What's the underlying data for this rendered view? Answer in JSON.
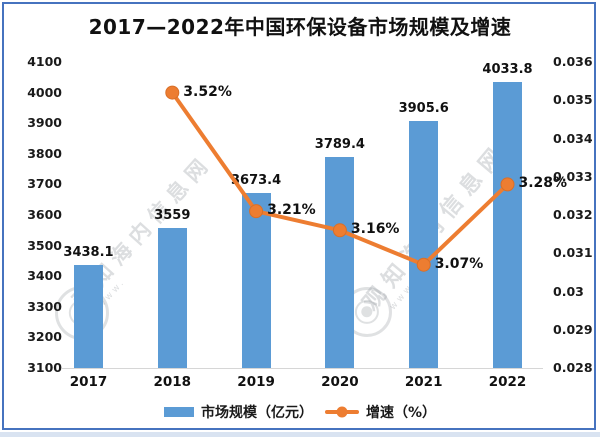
{
  "title": "2017—2022年中国环保设备市场规模及增速",
  "legend": {
    "bar_label": "市场规模（亿元）",
    "line_label": "增速（%）"
  },
  "watermark": {
    "text": "观知海内信息网",
    "subtext": "www."
  },
  "colors": {
    "bar": "#5B9BD5",
    "line": "#ED7D31",
    "border": "#4673bf",
    "text": "#111111",
    "baseline": "#d6d6d6"
  },
  "chart_data": {
    "type": "bar",
    "subtype": "combo bar+line, dual axis",
    "title": "2017—2022年中国环保设备市场规模及增速",
    "categories": [
      "2017",
      "2018",
      "2019",
      "2020",
      "2021",
      "2022"
    ],
    "series": [
      {
        "name": "市场规模（亿元）",
        "type": "bar",
        "axis": "left",
        "color": "#5B9BD5",
        "values": [
          3438.1,
          3559,
          3673.4,
          3789.4,
          3905.6,
          4033.8
        ],
        "labels": [
          "3438.1",
          "3559",
          "3673.4",
          "3789.4",
          "3905.6",
          "4033.8"
        ]
      },
      {
        "name": "增速（%）",
        "type": "line",
        "axis": "right",
        "color": "#ED7D31",
        "categories": [
          "2018",
          "2019",
          "2020",
          "2021",
          "2022"
        ],
        "values": [
          0.0352,
          0.0321,
          0.0316,
          0.0307,
          0.0328
        ],
        "labels": [
          "3.52%",
          "3.21%",
          "3.16%",
          "3.07%",
          "3.28%"
        ]
      }
    ],
    "left_axis": {
      "min": 3100,
      "max": 4100,
      "step": 100,
      "ticks": [
        "4100",
        "4000",
        "3900",
        "3800",
        "3700",
        "3600",
        "3500",
        "3400",
        "3300",
        "3200",
        "3100"
      ]
    },
    "right_axis": {
      "min": 0.028,
      "max": 0.036,
      "step": 0.001,
      "ticks": [
        "0.036",
        "0.035",
        "0.034",
        "0.033",
        "0.032",
        "0.031",
        "0.03",
        "0.029",
        "0.028"
      ]
    },
    "grid": false,
    "legend_position": "bottom"
  }
}
